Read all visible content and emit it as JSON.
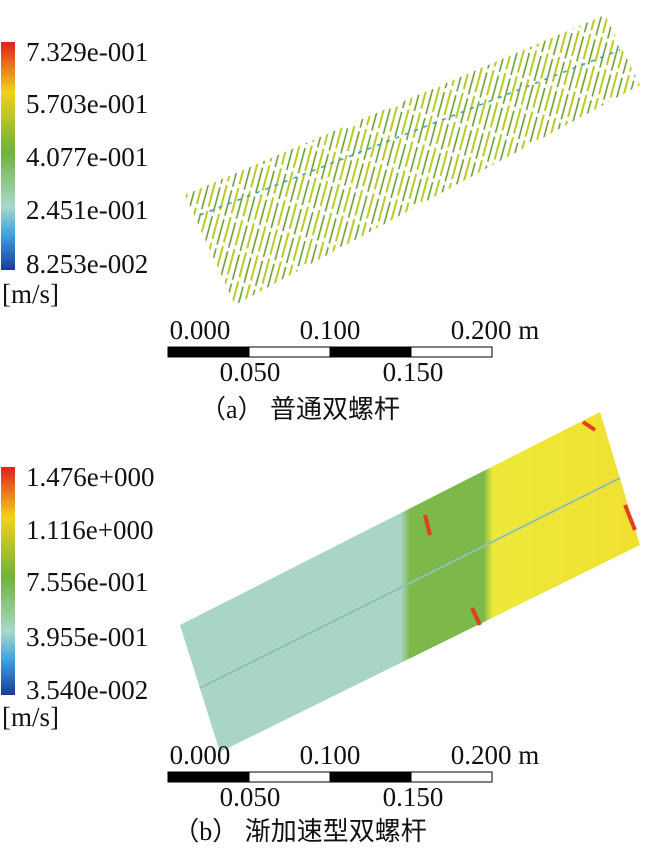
{
  "panels": [
    {
      "legend": {
        "labels": [
          "7.329e-001",
          "5.703e-001",
          "4.077e-001",
          "2.451e-001",
          "8.253e-002"
        ],
        "unit": "[m/s]"
      },
      "scale": {
        "top_labels": [
          "0.000",
          "0.100",
          "0.200 m"
        ],
        "bottom_labels": [
          "0.050",
          "0.150"
        ]
      },
      "caption": "（a） 普通双螺杆"
    },
    {
      "legend": {
        "labels": [
          "1.476e+000",
          "1.116e+000",
          "7.556e-001",
          "3.955e-001",
          "3.540e-002"
        ],
        "unit": "[m/s]"
      },
      "scale": {
        "top_labels": [
          "0.000",
          "0.100",
          "0.200 m"
        ],
        "bottom_labels": [
          "0.050",
          "0.150"
        ]
      },
      "caption": "（b） 渐加速型双螺杆"
    }
  ]
}
